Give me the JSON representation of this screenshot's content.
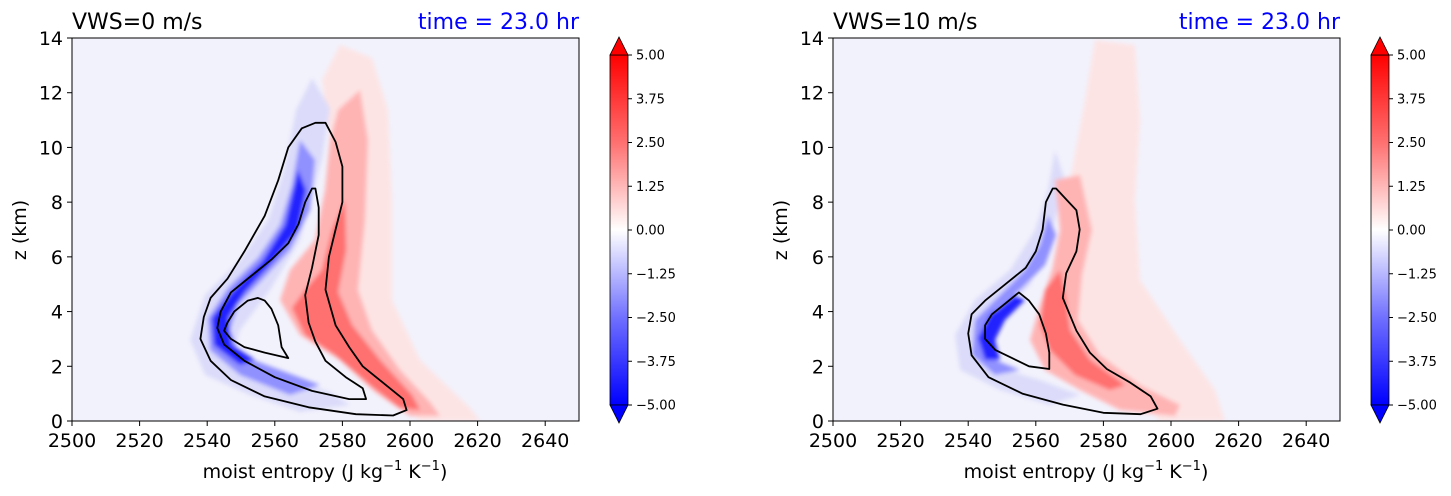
{
  "panels": [
    {
      "title_left": "VWS=0 m/s",
      "title_right": "time = 23.0 hr",
      "xlabel_main": "moist entropy (J kg",
      "xlabel_exp1": "−1",
      "xlabel_mid": " K",
      "xlabel_exp2": "−1",
      "xlabel_end": ")",
      "ylabel": "z (km)"
    },
    {
      "title_left": "VWS=10 m/s",
      "title_right": "time = 23.0 hr",
      "xlabel_main": "moist entropy (J kg",
      "xlabel_exp1": "−1",
      "xlabel_mid": " K",
      "xlabel_exp2": "−1",
      "xlabel_end": ")",
      "ylabel": "z (km)"
    }
  ],
  "colors": {
    "title_right": "#0000ff",
    "contour_line": "#000000",
    "background": "#f2f2fc"
  },
  "chart_data": [
    {
      "type": "contour",
      "title": "VWS=0 m/s",
      "subtitle": "time = 23.0 hr",
      "xlabel": "moist entropy (J kg^-1 K^-1)",
      "ylabel": "z (km)",
      "xlim": [
        2500,
        2650
      ],
      "ylim": [
        0,
        14
      ],
      "xticks": [
        "2500",
        "2520",
        "2540",
        "2560",
        "2580",
        "2600",
        "2620",
        "2640"
      ],
      "yticks": [
        "0",
        "2",
        "4",
        "6",
        "8",
        "10",
        "12",
        "14"
      ],
      "colorbar": {
        "min": -5.0,
        "max": 5.0,
        "extend": "both",
        "cmap": "bwr",
        "ticks": [
          "5.00",
          "3.75",
          "2.50",
          "1.25",
          "0.00",
          "−1.25",
          "−2.50",
          "−3.75",
          "−5.00"
        ]
      },
      "contours": [
        {
          "name": "outer",
          "points": [
            [
              2572,
              10.9
            ],
            [
              2568,
              10.7
            ],
            [
              2564,
              10
            ],
            [
              2561,
              8.8
            ],
            [
              2557,
              7.5
            ],
            [
              2551,
              6.2
            ],
            [
              2546,
              5.2
            ],
            [
              2541,
              4.5
            ],
            [
              2539,
              3.8
            ],
            [
              2538,
              3.0
            ],
            [
              2541,
              2.2
            ],
            [
              2547,
              1.5
            ],
            [
              2557,
              0.9
            ],
            [
              2570,
              0.5
            ],
            [
              2584,
              0.25
            ],
            [
              2595,
              0.2
            ],
            [
              2599,
              0.4
            ],
            [
              2598,
              0.8
            ],
            [
              2592,
              1.4
            ],
            [
              2586,
              2.0
            ],
            [
              2582,
              2.7
            ],
            [
              2578,
              3.5
            ],
            [
              2575,
              4.8
            ],
            [
              2576,
              6.0
            ],
            [
              2578,
              7.0
            ],
            [
              2580,
              8.0
            ],
            [
              2580,
              9.3
            ],
            [
              2578,
              10.2
            ],
            [
              2575,
              10.9
            ]
          ]
        },
        {
          "name": "inner",
          "points": [
            [
              2571,
              8.5
            ],
            [
              2569,
              8.0
            ],
            [
              2567,
              7.2
            ],
            [
              2564,
              6.5
            ],
            [
              2559,
              5.9
            ],
            [
              2553,
              5.3
            ],
            [
              2547,
              4.7
            ],
            [
              2544,
              4.0
            ],
            [
              2543,
              3.4
            ],
            [
              2545,
              2.8
            ],
            [
              2551,
              2.2
            ],
            [
              2560,
              1.6
            ],
            [
              2571,
              1.1
            ],
            [
              2582,
              0.8
            ],
            [
              2587,
              0.8
            ],
            [
              2586,
              1.2
            ],
            [
              2581,
              1.6
            ],
            [
              2575,
              2.2
            ],
            [
              2572,
              2.9
            ],
            [
              2570,
              3.6
            ],
            [
              2569,
              4.6
            ],
            [
              2571,
              5.6
            ],
            [
              2573,
              6.8
            ],
            [
              2573,
              7.8
            ],
            [
              2572,
              8.5
            ]
          ]
        },
        {
          "name": "negative-core",
          "points": [
            [
              2555,
              4.5
            ],
            [
              2552,
              4.4
            ],
            [
              2548,
              4.0
            ],
            [
              2546,
              3.6
            ],
            [
              2545,
              3.3
            ],
            [
              2547,
              3.0
            ],
            [
              2551,
              2.7
            ],
            [
              2557,
              2.5
            ],
            [
              2564,
              2.3
            ],
            [
              2562,
              2.7
            ],
            [
              2561,
              3.5
            ],
            [
              2559,
              4.1
            ],
            [
              2557,
              4.4
            ]
          ]
        }
      ]
    },
    {
      "type": "contour",
      "title": "VWS=10 m/s",
      "subtitle": "time = 23.0 hr",
      "xlabel": "moist entropy (J kg^-1 K^-1)",
      "ylabel": "z (km)",
      "xlim": [
        2500,
        2650
      ],
      "ylim": [
        0,
        14
      ],
      "xticks": [
        "2500",
        "2520",
        "2540",
        "2560",
        "2580",
        "2600",
        "2620",
        "2640"
      ],
      "yticks": [
        "0",
        "2",
        "4",
        "6",
        "8",
        "10",
        "12",
        "14"
      ],
      "colorbar": {
        "min": -5.0,
        "max": 5.0,
        "extend": "both",
        "cmap": "bwr",
        "ticks": [
          "5.00",
          "3.75",
          "2.50",
          "1.25",
          "0.00",
          "−1.25",
          "−2.50",
          "−3.75",
          "−5.00"
        ]
      },
      "contours": [
        {
          "name": "outer",
          "points": [
            [
              2565,
              8.5
            ],
            [
              2563,
              8.0
            ],
            [
              2562,
              7.0
            ],
            [
              2560,
              6.2
            ],
            [
              2557,
              5.6
            ],
            [
              2551,
              5.0
            ],
            [
              2545,
              4.4
            ],
            [
              2541,
              3.9
            ],
            [
              2540,
              3.2
            ],
            [
              2541,
              2.4
            ],
            [
              2546,
              1.6
            ],
            [
              2556,
              1.0
            ],
            [
              2568,
              0.6
            ],
            [
              2580,
              0.3
            ],
            [
              2591,
              0.25
            ],
            [
              2596,
              0.45
            ],
            [
              2594,
              0.9
            ],
            [
              2588,
              1.4
            ],
            [
              2581,
              1.9
            ],
            [
              2576,
              2.5
            ],
            [
              2572,
              3.3
            ],
            [
              2568,
              4.5
            ],
            [
              2569,
              5.4
            ],
            [
              2572,
              6.2
            ],
            [
              2573,
              7.0
            ],
            [
              2572,
              7.7
            ],
            [
              2569,
              8.1
            ],
            [
              2566,
              8.5
            ]
          ]
        },
        {
          "name": "negative-core",
          "points": [
            [
              2555,
              4.7
            ],
            [
              2551,
              4.3
            ],
            [
              2547,
              3.9
            ],
            [
              2545,
              3.5
            ],
            [
              2545,
              3.0
            ],
            [
              2548,
              2.6
            ],
            [
              2553,
              2.3
            ],
            [
              2558,
              2.0
            ],
            [
              2564,
              1.9
            ],
            [
              2564,
              2.5
            ],
            [
              2563,
              3.2
            ],
            [
              2561,
              3.9
            ],
            [
              2558,
              4.4
            ]
          ]
        }
      ]
    }
  ]
}
